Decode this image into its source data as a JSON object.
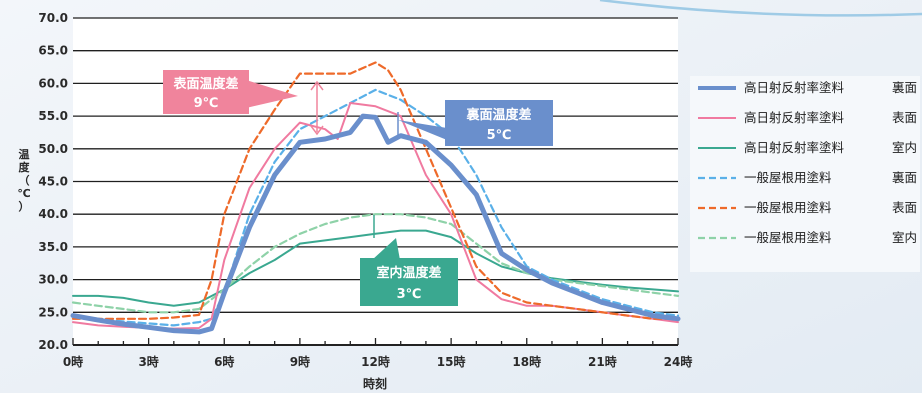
{
  "chart_data": {
    "type": "line",
    "xlabel": "時刻",
    "ylabel_chars": [
      "温",
      "度",
      "（",
      "℃",
      "）"
    ],
    "xlim": [
      0,
      24
    ],
    "ylim": [
      20,
      70
    ],
    "x_ticks": [
      {
        "value": 0,
        "label": "0時"
      },
      {
        "value": 3,
        "label": "3時"
      },
      {
        "value": 6,
        "label": "6時"
      },
      {
        "value": 9,
        "label": "9時"
      },
      {
        "value": 12,
        "label": "12時"
      },
      {
        "value": 15,
        "label": "15時"
      },
      {
        "value": 18,
        "label": "18時"
      },
      {
        "value": 21,
        "label": "21時"
      },
      {
        "value": 24,
        "label": "24時"
      }
    ],
    "y_ticks": [
      {
        "value": 20,
        "label": "20.0"
      },
      {
        "value": 25,
        "label": "25.0"
      },
      {
        "value": 30,
        "label": "30.0"
      },
      {
        "value": 35,
        "label": "35.0"
      },
      {
        "value": 40,
        "label": "40.0"
      },
      {
        "value": 45,
        "label": "45.0"
      },
      {
        "value": 50,
        "label": "50.0"
      },
      {
        "value": 55,
        "label": "55.0"
      },
      {
        "value": 60,
        "label": "60.0"
      },
      {
        "value": 65,
        "label": "65.0"
      },
      {
        "value": 70,
        "label": "70.0"
      }
    ],
    "grid": "horizontal",
    "legend_position": "right",
    "series": [
      {
        "name": "高日射反射率塗料　裏面",
        "label_a": "高日射反射率塗料",
        "label_b": "裏面",
        "color": "#6a8fcc",
        "style": "solid-thick",
        "x": [
          0,
          1,
          2,
          3,
          4,
          5,
          5.5,
          6,
          7,
          8,
          9,
          10,
          11,
          11.5,
          12,
          12.5,
          13,
          14,
          15,
          16,
          17,
          18,
          19,
          20,
          21,
          22,
          23,
          24
        ],
        "y": [
          24.5,
          23.8,
          23.2,
          22.7,
          22.2,
          22,
          22.5,
          28,
          38,
          46,
          51,
          51.5,
          52.5,
          55,
          54.8,
          51,
          52,
          51,
          47.5,
          43,
          34,
          31.5,
          29.5,
          28,
          26.5,
          25.5,
          24.5,
          24
        ]
      },
      {
        "name": "高日射反射率塗料　表面",
        "label_a": "高日射反射率塗料",
        "label_b": "表面",
        "color": "#f07aa0",
        "style": "solid",
        "x": [
          0,
          1,
          2,
          3,
          4,
          5,
          5.5,
          6,
          7,
          8,
          9,
          10,
          10.5,
          11,
          12,
          13,
          14,
          15,
          16,
          17,
          18,
          19,
          20,
          21,
          22,
          23,
          24
        ],
        "y": [
          23.5,
          23,
          22.8,
          22.6,
          22.5,
          22.6,
          24,
          33,
          44,
          50,
          54,
          53,
          51.5,
          57,
          56.5,
          55,
          46,
          40,
          30,
          27,
          26,
          26,
          25.5,
          25,
          24.5,
          24,
          23.5
        ]
      },
      {
        "name": "高日射反射率塗料　室内",
        "label_a": "高日射反射率塗料",
        "label_b": "室内",
        "color": "#3aa890",
        "style": "solid",
        "x": [
          0,
          1,
          2,
          3,
          4,
          5,
          6,
          7,
          8,
          9,
          10,
          11,
          12,
          13,
          14,
          15,
          16,
          17,
          18,
          19,
          20,
          21,
          22,
          23,
          24
        ],
        "y": [
          27.5,
          27.5,
          27.2,
          26.5,
          26,
          26.5,
          28.5,
          31,
          33,
          35.5,
          36,
          36.5,
          37,
          37.5,
          37.5,
          36.5,
          34,
          32,
          31,
          30.2,
          29.7,
          29.2,
          28.8,
          28.5,
          28.2
        ]
      },
      {
        "name": "一般屋根用塗料　裏面",
        "label_a": "一般屋根用塗料",
        "label_b": "裏面",
        "color": "#5ab0e8",
        "style": "dashed",
        "x": [
          0,
          1,
          2,
          3,
          4,
          5,
          5.5,
          6,
          7,
          8,
          9,
          10,
          11,
          12,
          13,
          14,
          15,
          16,
          17,
          18,
          19,
          20,
          21,
          22,
          23,
          24
        ],
        "y": [
          24.5,
          24,
          23.6,
          23.3,
          23,
          23.5,
          24,
          28,
          40,
          48,
          53,
          55,
          57,
          59,
          57.5,
          55,
          52,
          46,
          38,
          32,
          30,
          28.5,
          27,
          26,
          25,
          24.5
        ]
      },
      {
        "name": "一般屋根用塗料　表面",
        "label_a": "一般屋根用塗料",
        "label_b": "表面",
        "color": "#ee6a2a",
        "style": "dashed",
        "x": [
          0,
          1,
          2,
          3,
          4,
          5,
          5.5,
          6,
          7,
          8,
          9,
          10,
          11,
          12,
          12.5,
          13,
          14,
          15,
          16,
          17,
          18,
          19,
          20,
          21,
          22,
          23,
          24
        ],
        "y": [
          24,
          24,
          24,
          24,
          24.2,
          24.6,
          30,
          40,
          50,
          56,
          61.5,
          61.5,
          61.5,
          63.2,
          62,
          59,
          50,
          41,
          32,
          28,
          26.5,
          26,
          25.5,
          25,
          24.5,
          24,
          24
        ]
      },
      {
        "name": "一般屋根用塗料　室内",
        "label_a": "一般屋根用塗料",
        "label_b": "室内",
        "color": "#8ed2a8",
        "style": "dashed",
        "x": [
          0,
          1,
          2,
          3,
          4,
          5,
          6,
          7,
          8,
          9,
          10,
          11,
          12,
          13,
          14,
          15,
          16,
          17,
          18,
          19,
          20,
          21,
          22,
          23,
          24
        ],
        "y": [
          26.5,
          26,
          25.5,
          25,
          25,
          25.5,
          28.5,
          32,
          35,
          37,
          38.5,
          39.5,
          40,
          40,
          39.5,
          38.5,
          35.5,
          32.5,
          31,
          30,
          29.5,
          29,
          28.5,
          28,
          27.5
        ]
      }
    ],
    "annotations": [
      {
        "name": "surface-diff",
        "lines": [
          "表面温度差",
          "9℃"
        ],
        "bg": "#f0849c"
      },
      {
        "name": "back-diff",
        "lines": [
          "裏面温度差",
          "5℃"
        ],
        "bg": "#6a8fcc"
      },
      {
        "name": "indoor-diff",
        "lines": [
          "室内温度差",
          "3℃"
        ],
        "bg": "#3aa890"
      }
    ]
  }
}
